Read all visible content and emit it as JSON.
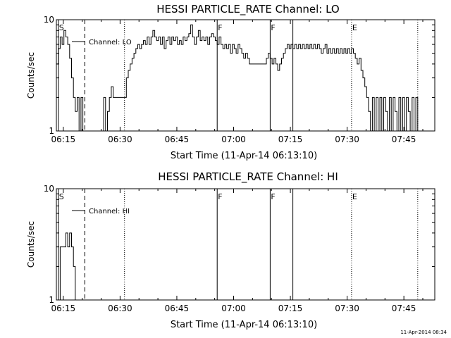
{
  "chart_data": [
    {
      "type": "line",
      "title": "HESSI PARTICLE_RATE Channel: LO",
      "xlabel": "Start Time (11-Apr-14 06:13:10)",
      "ylabel": "Counts/sec",
      "y_scale": "log",
      "ylim": [
        1,
        10
      ],
      "y_ticks": [
        {
          "value": 1,
          "label": "1"
        },
        {
          "value": 10,
          "label": "10"
        }
      ],
      "x_range": [
        "06:13:10",
        "07:53:10"
      ],
      "x_ticks": [
        "06:15",
        "06:30",
        "06:45",
        "07:00",
        "07:15",
        "07:30",
        "07:45"
      ],
      "grid": false,
      "legend": {
        "position": "top-left",
        "entries": [
          "Channel: LO"
        ]
      },
      "markers": [
        {
          "time": "06:13:40",
          "label": "S",
          "style": "solid"
        },
        {
          "time": "06:20:40",
          "label": "",
          "style": "dashed"
        },
        {
          "time": "06:31:10",
          "label": "",
          "style": "dotted"
        },
        {
          "time": "06:55:40",
          "label": "F",
          "style": "solid"
        },
        {
          "time": "07:09:40",
          "label": "F",
          "style": "solid"
        },
        {
          "time": "07:15:40",
          "label": "",
          "style": "solid"
        },
        {
          "time": "07:31:10",
          "label": "E",
          "style": "dotted"
        },
        {
          "time": "07:48:40",
          "label": "",
          "style": "dotted"
        }
      ],
      "series": [
        {
          "name": "Channel: LO",
          "points": [
            [
              "06:13:10",
              4.0
            ],
            [
              "06:13:40",
              5.5
            ],
            [
              "06:14:10",
              7.0
            ],
            [
              "06:14:40",
              6.0
            ],
            [
              "06:15:10",
              8.0
            ],
            [
              "06:15:40",
              7.0
            ],
            [
              "06:16:10",
              6.0
            ],
            [
              "06:16:40",
              4.5
            ],
            [
              "06:17:10",
              3.0
            ],
            [
              "06:17:40",
              2.0
            ],
            [
              "06:18:10",
              1.5
            ],
            [
              "06:18:40",
              2.0
            ],
            [
              "06:19:10",
              1.0
            ],
            [
              "06:19:40",
              2.0
            ],
            [
              "06:20:10",
              1.0
            ],
            [
              "06:25:10",
              1.0
            ],
            [
              "06:25:40",
              2.0
            ],
            [
              "06:26:10",
              1.0
            ],
            [
              "06:26:40",
              1.5
            ],
            [
              "06:27:10",
              2.0
            ],
            [
              "06:27:40",
              2.5
            ],
            [
              "06:28:10",
              2.0
            ],
            [
              "06:30:10",
              2.0
            ],
            [
              "06:31:10",
              2.0
            ],
            [
              "06:31:40",
              3.0
            ],
            [
              "06:32:10",
              3.5
            ],
            [
              "06:32:40",
              4.0
            ],
            [
              "06:33:10",
              4.5
            ],
            [
              "06:33:40",
              5.0
            ],
            [
              "06:34:10",
              5.5
            ],
            [
              "06:34:40",
              6.0
            ],
            [
              "06:35:10",
              5.5
            ],
            [
              "06:35:40",
              6.0
            ],
            [
              "06:36:10",
              6.5
            ],
            [
              "06:36:40",
              6.0
            ],
            [
              "06:37:10",
              7.0
            ],
            [
              "06:37:40",
              6.0
            ],
            [
              "06:38:10",
              7.0
            ],
            [
              "06:38:40",
              8.0
            ],
            [
              "06:39:10",
              7.0
            ],
            [
              "06:39:40",
              6.5
            ],
            [
              "06:40:10",
              7.0
            ],
            [
              "06:40:40",
              6.0
            ],
            [
              "06:41:10",
              7.0
            ],
            [
              "06:41:40",
              5.5
            ],
            [
              "06:42:10",
              6.5
            ],
            [
              "06:42:40",
              7.0
            ],
            [
              "06:43:10",
              6.0
            ],
            [
              "06:43:40",
              7.0
            ],
            [
              "06:44:10",
              6.5
            ],
            [
              "06:44:40",
              7.0
            ],
            [
              "06:45:10",
              6.0
            ],
            [
              "06:45:40",
              6.5
            ],
            [
              "06:46:10",
              6.0
            ],
            [
              "06:46:40",
              7.0
            ],
            [
              "06:47:10",
              6.5
            ],
            [
              "06:47:40",
              7.0
            ],
            [
              "06:48:10",
              7.5
            ],
            [
              "06:48:40",
              9.0
            ],
            [
              "06:49:10",
              7.0
            ],
            [
              "06:49:40",
              6.0
            ],
            [
              "06:50:10",
              7.0
            ],
            [
              "06:50:40",
              8.0
            ],
            [
              "06:51:10",
              6.5
            ],
            [
              "06:51:40",
              7.0
            ],
            [
              "06:52:10",
              6.5
            ],
            [
              "06:52:40",
              7.0
            ],
            [
              "06:53:10",
              6.0
            ],
            [
              "06:53:40",
              7.0
            ],
            [
              "06:54:10",
              7.5
            ],
            [
              "06:54:40",
              7.0
            ],
            [
              "06:55:10",
              6.5
            ],
            [
              "06:55:40",
              6.0
            ],
            [
              "06:56:10",
              7.0
            ],
            [
              "06:56:40",
              6.0
            ],
            [
              "06:57:10",
              5.5
            ],
            [
              "06:57:40",
              6.0
            ],
            [
              "06:58:10",
              5.5
            ],
            [
              "06:58:40",
              6.0
            ],
            [
              "06:59:10",
              5.0
            ],
            [
              "06:59:40",
              6.0
            ],
            [
              "07:00:10",
              5.5
            ],
            [
              "07:00:40",
              5.0
            ],
            [
              "07:01:10",
              6.0
            ],
            [
              "07:01:40",
              5.5
            ],
            [
              "07:02:10",
              5.0
            ],
            [
              "07:02:40",
              4.5
            ],
            [
              "07:03:10",
              5.0
            ],
            [
              "07:03:40",
              4.5
            ],
            [
              "07:04:10",
              4.0
            ],
            [
              "07:08:10",
              4.0
            ],
            [
              "07:08:40",
              4.5
            ],
            [
              "07:09:10",
              5.0
            ],
            [
              "07:09:40",
              4.5
            ],
            [
              "07:10:10",
              4.0
            ],
            [
              "07:10:40",
              4.5
            ],
            [
              "07:11:10",
              4.0
            ],
            [
              "07:11:40",
              3.5
            ],
            [
              "07:12:10",
              4.0
            ],
            [
              "07:12:40",
              4.5
            ],
            [
              "07:13:10",
              5.0
            ],
            [
              "07:13:40",
              5.5
            ],
            [
              "07:14:10",
              6.0
            ],
            [
              "07:14:40",
              5.5
            ],
            [
              "07:15:10",
              6.0
            ],
            [
              "07:15:40",
              5.5
            ],
            [
              "07:16:10",
              6.0
            ],
            [
              "07:16:40",
              5.5
            ],
            [
              "07:17:10",
              6.0
            ],
            [
              "07:17:40",
              5.5
            ],
            [
              "07:18:10",
              6.0
            ],
            [
              "07:18:40",
              5.5
            ],
            [
              "07:19:10",
              6.0
            ],
            [
              "07:19:40",
              5.5
            ],
            [
              "07:20:10",
              6.0
            ],
            [
              "07:20:40",
              5.5
            ],
            [
              "07:21:10",
              6.0
            ],
            [
              "07:21:40",
              5.5
            ],
            [
              "07:22:10",
              6.0
            ],
            [
              "07:22:40",
              5.5
            ],
            [
              "07:23:10",
              5.0
            ],
            [
              "07:23:40",
              5.5
            ],
            [
              "07:24:10",
              6.0
            ],
            [
              "07:24:40",
              5.0
            ],
            [
              "07:25:10",
              5.5
            ],
            [
              "07:25:40",
              5.0
            ],
            [
              "07:26:10",
              5.5
            ],
            [
              "07:26:40",
              5.0
            ],
            [
              "07:27:10",
              5.5
            ],
            [
              "07:27:40",
              5.0
            ],
            [
              "07:28:10",
              5.5
            ],
            [
              "07:28:40",
              5.0
            ],
            [
              "07:29:10",
              5.5
            ],
            [
              "07:29:40",
              5.0
            ],
            [
              "07:30:10",
              5.5
            ],
            [
              "07:30:40",
              5.0
            ],
            [
              "07:31:10",
              5.5
            ],
            [
              "07:31:40",
              5.0
            ],
            [
              "07:32:10",
              4.5
            ],
            [
              "07:32:40",
              4.0
            ],
            [
              "07:33:10",
              4.5
            ],
            [
              "07:33:40",
              3.5
            ],
            [
              "07:34:10",
              3.0
            ],
            [
              "07:34:40",
              2.5
            ],
            [
              "07:35:10",
              2.0
            ],
            [
              "07:35:40",
              1.5
            ],
            [
              "07:36:10",
              1.0
            ],
            [
              "07:36:40",
              2.0
            ],
            [
              "07:37:10",
              1.0
            ],
            [
              "07:37:40",
              2.0
            ],
            [
              "07:38:10",
              1.0
            ],
            [
              "07:38:40",
              2.0
            ],
            [
              "07:39:10",
              1.0
            ],
            [
              "07:39:40",
              2.0
            ],
            [
              "07:40:10",
              1.5
            ],
            [
              "07:40:40",
              1.0
            ],
            [
              "07:41:10",
              2.0
            ],
            [
              "07:41:40",
              1.0
            ],
            [
              "07:42:10",
              2.0
            ],
            [
              "07:42:40",
              1.5
            ],
            [
              "07:43:10",
              1.0
            ],
            [
              "07:43:40",
              2.0
            ],
            [
              "07:44:10",
              1.0
            ],
            [
              "07:44:40",
              2.0
            ],
            [
              "07:45:10",
              1.0
            ],
            [
              "07:45:40",
              2.0
            ],
            [
              "07:46:10",
              1.5
            ],
            [
              "07:46:40",
              1.0
            ],
            [
              "07:47:10",
              2.0
            ],
            [
              "07:47:40",
              1.0
            ],
            [
              "07:48:10",
              2.0
            ],
            [
              "07:48:40",
              1.0
            ]
          ]
        }
      ]
    },
    {
      "type": "line",
      "title": "HESSI PARTICLE_RATE Channel: HI",
      "xlabel": "Start Time (11-Apr-14 06:13:10)",
      "ylabel": "Counts/sec",
      "y_scale": "log",
      "ylim": [
        1,
        10
      ],
      "y_ticks": [
        {
          "value": 1,
          "label": "1"
        },
        {
          "value": 10,
          "label": "10"
        }
      ],
      "x_range": [
        "06:13:10",
        "07:53:10"
      ],
      "x_ticks": [
        "06:15",
        "06:30",
        "06:45",
        "07:00",
        "07:15",
        "07:30",
        "07:45"
      ],
      "grid": false,
      "legend": {
        "position": "top-left",
        "entries": [
          "Channel: HI"
        ]
      },
      "markers": [
        {
          "time": "06:13:40",
          "label": "S",
          "style": "solid"
        },
        {
          "time": "06:20:40",
          "label": "",
          "style": "dashed"
        },
        {
          "time": "06:31:10",
          "label": "",
          "style": "dotted"
        },
        {
          "time": "06:55:40",
          "label": "F",
          "style": "solid"
        },
        {
          "time": "07:09:40",
          "label": "F",
          "style": "solid"
        },
        {
          "time": "07:15:40",
          "label": "",
          "style": "solid"
        },
        {
          "time": "07:31:10",
          "label": "E",
          "style": "dotted"
        },
        {
          "time": "07:48:40",
          "label": "",
          "style": "dotted"
        }
      ],
      "series": [
        {
          "name": "Channel: HI",
          "points": [
            [
              "06:13:40",
              1.0
            ],
            [
              "06:14:10",
              3.0
            ],
            [
              "06:15:10",
              3.0
            ],
            [
              "06:15:40",
              4.0
            ],
            [
              "06:16:10",
              3.0
            ],
            [
              "06:16:40",
              4.0
            ],
            [
              "06:17:10",
              3.0
            ],
            [
              "06:17:40",
              2.0
            ],
            [
              "06:18:10",
              1.0
            ]
          ]
        }
      ]
    }
  ],
  "footer": {
    "timestamp": "11-Apr-2014 08:34"
  },
  "colors": {
    "line": "#000000",
    "background": "#ffffff"
  }
}
